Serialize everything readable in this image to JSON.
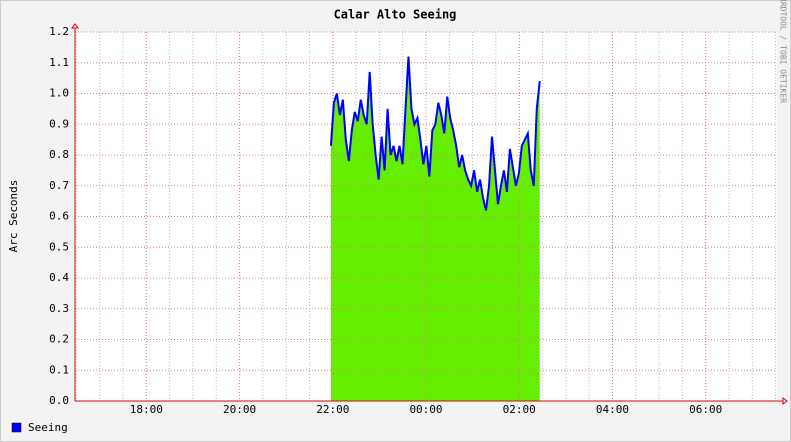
{
  "chart_data": {
    "type": "area",
    "title": "Calar Alto Seeing",
    "ylabel": "Arc Seconds",
    "side_note": "RRDTOOL / TOBI OETIKER",
    "x": [
      21.96,
      22.024,
      22.088,
      22.152,
      22.216,
      22.28,
      22.344,
      22.408,
      22.472,
      22.536,
      22.6,
      22.664,
      22.728,
      22.792,
      22.856,
      22.92,
      22.984,
      23.048,
      23.112,
      23.176,
      23.24,
      23.304,
      23.368,
      23.432,
      23.496,
      23.56,
      23.624,
      23.688,
      23.752,
      23.816,
      23.88,
      23.944,
      24.008,
      24.072,
      24.136,
      24.2,
      24.264,
      24.328,
      24.392,
      24.456,
      24.52,
      24.584,
      24.648,
      24.712,
      24.776,
      24.84,
      24.904,
      24.968,
      25.032,
      25.096,
      25.16,
      25.224,
      25.288,
      25.352,
      25.416,
      25.48,
      25.544,
      25.608,
      25.672,
      25.736,
      25.8,
      25.864,
      25.928,
      25.992,
      26.056,
      26.12,
      26.184,
      26.248,
      26.312,
      26.376,
      26.44
    ],
    "series": [
      {
        "name": "Seeing",
        "color": "#0000ff",
        "area_color": "#66ee00",
        "values": [
          0.83,
          0.97,
          1.0,
          0.93,
          0.98,
          0.85,
          0.78,
          0.88,
          0.94,
          0.91,
          0.98,
          0.93,
          0.9,
          1.07,
          0.9,
          0.8,
          0.72,
          0.86,
          0.75,
          0.95,
          0.8,
          0.83,
          0.78,
          0.83,
          0.77,
          0.95,
          1.12,
          0.95,
          0.9,
          0.92,
          0.85,
          0.77,
          0.83,
          0.73,
          0.88,
          0.9,
          0.97,
          0.93,
          0.87,
          0.99,
          0.92,
          0.88,
          0.83,
          0.76,
          0.8,
          0.75,
          0.72,
          0.7,
          0.75,
          0.68,
          0.72,
          0.66,
          0.62,
          0.7,
          0.86,
          0.75,
          0.64,
          0.7,
          0.75,
          0.68,
          0.82,
          0.76,
          0.7,
          0.74,
          0.83,
          0.85,
          0.87,
          0.75,
          0.7,
          0.95,
          1.04
        ]
      }
    ],
    "xlim": [
      16.47,
      31.53
    ],
    "xticks": [
      {
        "value": 18,
        "label": "18:00"
      },
      {
        "value": 20,
        "label": "20:00"
      },
      {
        "value": 22,
        "label": "22:00"
      },
      {
        "value": 24,
        "label": "00:00"
      },
      {
        "value": 26,
        "label": "02:00"
      },
      {
        "value": 28,
        "label": "04:00"
      },
      {
        "value": 30,
        "label": "06:00"
      }
    ],
    "ylim": [
      0,
      1.2
    ],
    "yticks": [
      {
        "value": 0,
        "label": "0.0"
      },
      0.1,
      0.2,
      0.3,
      0.4,
      0.5,
      0.6,
      0.7,
      0.8,
      0.9,
      {
        "value": 1,
        "label": "1.0"
      },
      1.1,
      1.2
    ],
    "grid": true
  }
}
